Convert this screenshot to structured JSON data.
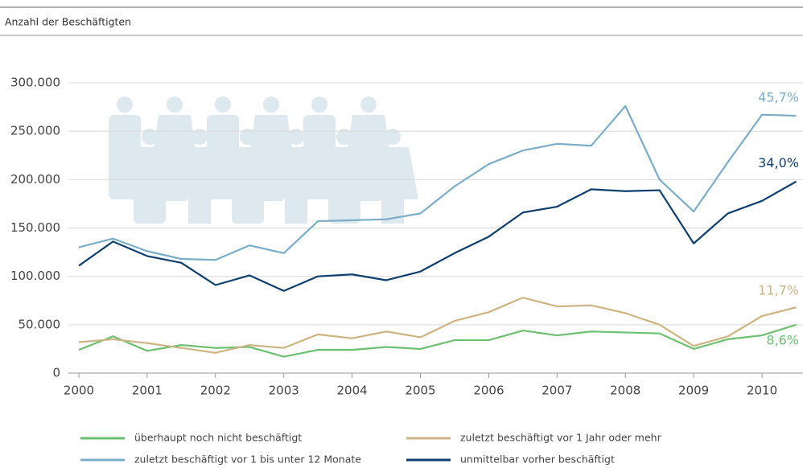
{
  "chart_data": {
    "type": "line",
    "title": "Anzahl der Beschäftigten",
    "x": [
      2000,
      2000.5,
      2001,
      2001.5,
      2002,
      2002.5,
      2003,
      2003.5,
      2004,
      2004.5,
      2005,
      2005.5,
      2006,
      2006.5,
      2007,
      2007.5,
      2008,
      2008.5,
      2009,
      2009.5,
      2010,
      2010.5
    ],
    "xlim": [
      2000,
      2010.5
    ],
    "xticks": [
      2000,
      2001,
      2002,
      2003,
      2004,
      2005,
      2006,
      2007,
      2008,
      2009,
      2010
    ],
    "ylim": [
      0,
      300000
    ],
    "yticks": [
      0,
      {
        "value": 50000,
        "label": "50.000"
      },
      {
        "value": 100000,
        "label": "100.000"
      },
      {
        "value": 150000,
        "label": "150.000"
      },
      {
        "value": 200000,
        "label": "200.000"
      },
      {
        "value": 250000,
        "label": "250.000"
      },
      {
        "value": 300000,
        "label": "300.000"
      }
    ],
    "grid": true,
    "series": [
      {
        "name": "überhaupt noch nicht beschäftigt",
        "color": "#6cc070",
        "annotation": "8,6%",
        "values": [
          24000,
          38000,
          23000,
          29000,
          26000,
          27000,
          17000,
          24000,
          24000,
          27000,
          25000,
          34000,
          34000,
          44000,
          39000,
          43000,
          42000,
          41000,
          25000,
          35000,
          39000,
          50000
        ]
      },
      {
        "name": "zuletzt beschäftigt vor 1 Jahr oder mehr",
        "color": "#cdb483",
        "annotation": "11,7%",
        "values": [
          32000,
          35000,
          31000,
          26000,
          21000,
          29000,
          26000,
          40000,
          36000,
          43000,
          37000,
          54000,
          63000,
          78000,
          69000,
          70000,
          62000,
          50000,
          28000,
          38000,
          59000,
          68000
        ]
      },
      {
        "name": "zuletzt beschäftigt vor 1 bis unter 12 Monate",
        "color": "#7aaec8",
        "annotation": "45,7%",
        "values": [
          130000,
          139000,
          126000,
          118000,
          117000,
          132000,
          124000,
          157000,
          158000,
          159000,
          165000,
          193000,
          216000,
          230000,
          237000,
          235000,
          276000,
          200000,
          167000,
          218000,
          267000,
          266000
        ]
      },
      {
        "name": "unmittelbar vorher beschäftigt",
        "color": "#0e3f6e",
        "annotation": "34,0%",
        "values": [
          111000,
          136000,
          121000,
          114000,
          91000,
          101000,
          85000,
          100000,
          102000,
          96000,
          105000,
          124000,
          141000,
          166000,
          172000,
          190000,
          188000,
          189000,
          134000,
          165000,
          178000,
          198000
        ]
      }
    ]
  }
}
